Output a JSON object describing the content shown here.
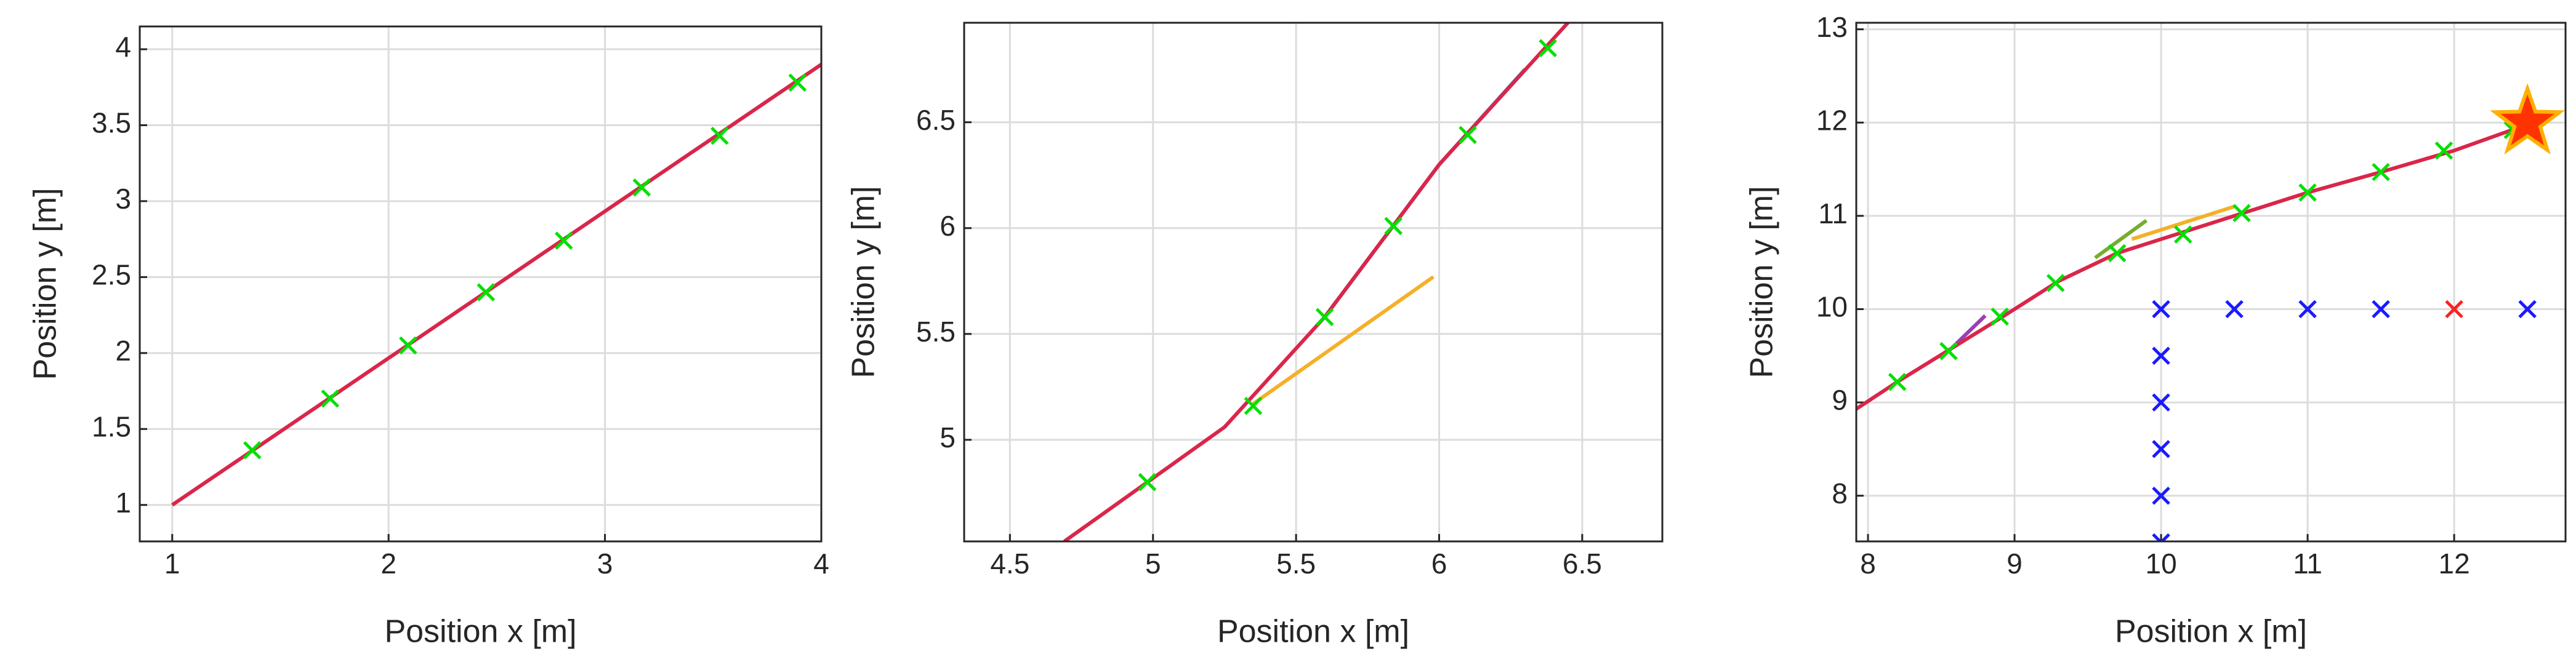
{
  "chart_data": [
    {
      "type": "line",
      "xlabel": "Position x [m]",
      "ylabel": "Position y [m]",
      "xlim": [
        0.85,
        4
      ],
      "ylim": [
        0.76,
        4.15
      ],
      "xticks": [
        1,
        2,
        3,
        4
      ],
      "yticks": [
        1,
        1.5,
        2,
        2.5,
        3,
        3.5,
        4
      ],
      "grid": true,
      "series": [
        {
          "color": "#d9264a",
          "marker": "none",
          "x": [
            1,
            4
          ],
          "values": [
            1,
            3.9
          ]
        },
        {
          "color": "#00e000",
          "marker": "x",
          "x": [
            1.37,
            1.73,
            2.09,
            2.45,
            2.81,
            3.17,
            3.53,
            3.89
          ],
          "values": [
            1.36,
            1.7,
            2.05,
            2.4,
            2.74,
            3.09,
            3.43,
            3.78
          ]
        }
      ]
    },
    {
      "type": "line",
      "xlabel": "Position x [m]",
      "ylabel": "Position y [m]",
      "xlim": [
        4.34,
        6.78
      ],
      "ylim": [
        4.52,
        6.97
      ],
      "xticks": [
        4.5,
        5,
        5.5,
        6,
        6.5
      ],
      "yticks": [
        5,
        5.5,
        6,
        6.5
      ],
      "grid": true,
      "series": [
        {
          "color": "#f5b027",
          "marker": "none",
          "x": [
            5.35,
            5.98
          ],
          "values": [
            5.17,
            5.77
          ]
        },
        {
          "color": "#2b8fd6",
          "marker": "none",
          "x": [
            5.6,
            6.0,
            6.3
          ],
          "values": [
            5.58,
            6.3,
            6.75
          ]
        },
        {
          "color": "#d9264a",
          "marker": "none",
          "x": [
            4.69,
            5.25,
            5.6,
            6.0,
            6.45
          ],
          "values": [
            4.52,
            5.06,
            5.58,
            6.3,
            6.97
          ]
        },
        {
          "color": "#00e000",
          "marker": "x",
          "x": [
            4.98,
            5.35,
            5.6,
            5.84,
            6.1,
            6.38
          ],
          "values": [
            4.8,
            5.16,
            5.58,
            6.01,
            6.44,
            6.85
          ]
        }
      ]
    },
    {
      "type": "line",
      "xlabel": "Position x [m]",
      "ylabel": "Position y [m]",
      "xlim": [
        7.92,
        12.76
      ],
      "ylim": [
        7.51,
        13.07
      ],
      "xticks": [
        8,
        9,
        10,
        11,
        12
      ],
      "yticks": [
        8,
        9,
        10,
        11,
        12,
        13
      ],
      "grid": true,
      "series": [
        {
          "color": "#9b3fb5",
          "marker": "none",
          "x": [
            8.55,
            8.8
          ],
          "values": [
            9.55,
            9.93
          ]
        },
        {
          "color": "#77ac30",
          "marker": "none",
          "x": [
            9.55,
            9.9
          ],
          "values": [
            10.55,
            10.95
          ]
        },
        {
          "color": "#f5b027",
          "marker": "none",
          "x": [
            9.8,
            10.5
          ],
          "values": [
            10.75,
            11.1
          ]
        },
        {
          "color": "#d9264a",
          "marker": "none",
          "x": [
            7.92,
            8.2,
            8.9,
            9.3,
            9.7,
            10.1,
            10.6,
            11,
            11.5,
            12,
            12.5
          ],
          "values": [
            8.93,
            9.22,
            9.9,
            10.3,
            10.6,
            10.8,
            11.05,
            11.25,
            11.47,
            11.7,
            11.98
          ]
        },
        {
          "color": "#00e000",
          "marker": "x",
          "x": [
            8.2,
            8.55,
            8.9,
            9.28,
            9.7,
            10.15,
            10.55,
            11,
            11.5,
            11.93,
            12.4
          ],
          "values": [
            9.22,
            9.55,
            9.92,
            10.28,
            10.6,
            10.8,
            11.03,
            11.25,
            11.47,
            11.7,
            11.92
          ]
        },
        {
          "color": "#1a1aff",
          "marker": "x",
          "x": [
            10,
            10,
            10,
            10,
            10,
            10,
            10.5,
            11,
            11.5,
            12.5
          ],
          "values": [
            7.5,
            8,
            8.5,
            9,
            9.5,
            10,
            10,
            10,
            10,
            10
          ]
        },
        {
          "color": "#ff2020",
          "marker": "x",
          "x": [
            12
          ],
          "values": [
            10
          ]
        },
        {
          "color": "#ff3300",
          "marker": "star",
          "x": [
            12.5
          ],
          "values": [
            12
          ]
        }
      ]
    }
  ]
}
